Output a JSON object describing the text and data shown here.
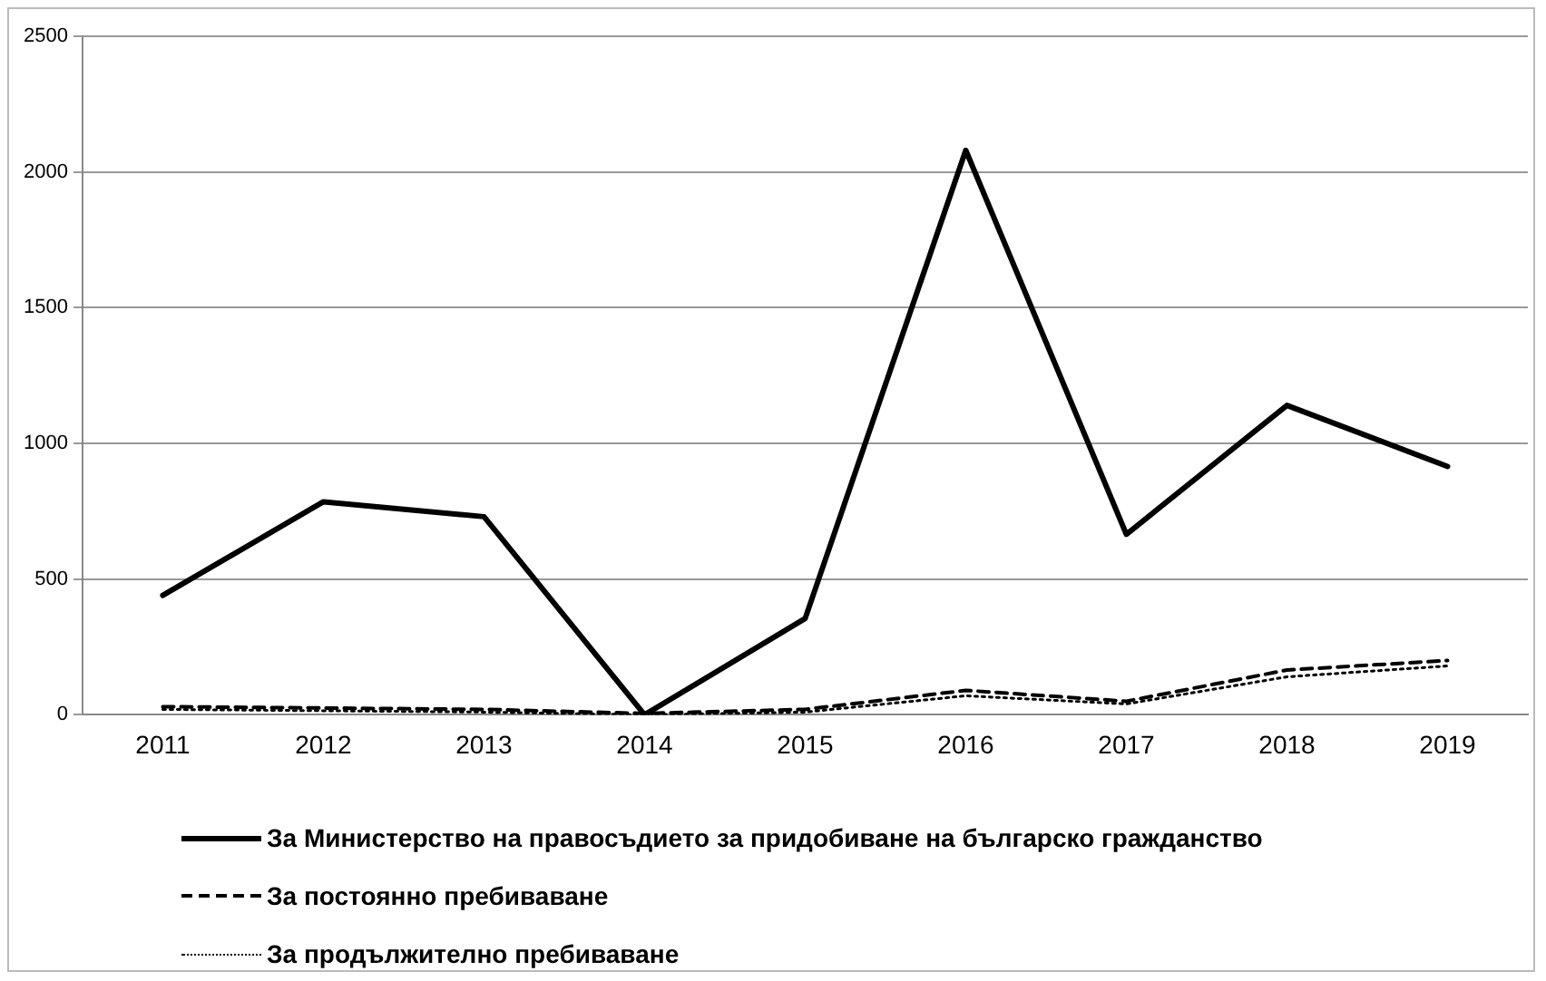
{
  "chart_data": {
    "type": "line",
    "categories": [
      "2011",
      "2012",
      "2013",
      "2014",
      "2015",
      "2016",
      "2017",
      "2018",
      "2019"
    ],
    "series": [
      {
        "name": "За Министерство на правосъдието за придобиване на българско гражданство",
        "color": "#000000",
        "line_style": "solid",
        "values": [
          440,
          785,
          730,
          0,
          355,
          2080,
          665,
          1140,
          915
        ]
      },
      {
        "name": "За постоянно пребиваване",
        "color": "#000000",
        "line_style": "dashed",
        "values": [
          30,
          25,
          20,
          5,
          20,
          90,
          50,
          165,
          200
        ]
      },
      {
        "name": "За продължително пребиваване",
        "color": "#000000",
        "line_style": "dotted",
        "values": [
          20,
          15,
          10,
          0,
          10,
          70,
          40,
          140,
          180
        ]
      }
    ],
    "ylim": [
      0,
      2500
    ],
    "yticks": [
      0,
      500,
      1000,
      1500,
      2000,
      2500
    ],
    "grid": "y",
    "legend": "bottom",
    "marker": "none"
  }
}
